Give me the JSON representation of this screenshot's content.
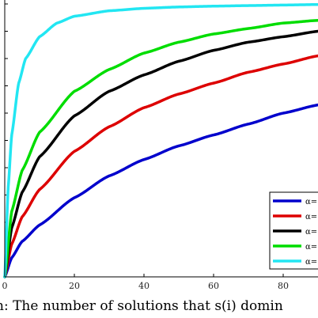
{
  "chart_data": {
    "type": "line",
    "xlim": [
      0,
      90
    ],
    "ylim": [
      0,
      1
    ],
    "x_ticks": [
      "0",
      "20",
      "40",
      "60",
      "80"
    ],
    "grid": false,
    "legend_position": "bottom-right",
    "series": [
      {
        "name": "α=",
        "color": "#0000cc",
        "x": [
          0,
          2,
          5,
          10,
          20,
          30,
          40,
          50,
          60,
          70,
          80,
          90
        ],
        "y": [
          0,
          0.07,
          0.13,
          0.19,
          0.29,
          0.37,
          0.43,
          0.48,
          0.52,
          0.56,
          0.6,
          0.63
        ]
      },
      {
        "name": "α=",
        "color": "#dd0000",
        "x": [
          0,
          2,
          5,
          10,
          20,
          30,
          40,
          50,
          60,
          70,
          80,
          90
        ],
        "y": [
          0,
          0.12,
          0.22,
          0.32,
          0.46,
          0.55,
          0.62,
          0.67,
          0.71,
          0.75,
          0.78,
          0.81
        ]
      },
      {
        "name": "α=",
        "color": "#000000",
        "x": [
          0,
          2,
          5,
          10,
          20,
          30,
          40,
          50,
          60,
          70,
          80,
          90
        ],
        "y": [
          0,
          0.18,
          0.31,
          0.44,
          0.59,
          0.68,
          0.74,
          0.79,
          0.83,
          0.86,
          0.88,
          0.9
        ]
      },
      {
        "name": "α=",
        "color": "#00dd00",
        "x": [
          0,
          2,
          5,
          10,
          20,
          30,
          40,
          50,
          60,
          70,
          80,
          90
        ],
        "y": [
          0,
          0.24,
          0.39,
          0.53,
          0.68,
          0.76,
          0.82,
          0.86,
          0.89,
          0.91,
          0.93,
          0.94
        ]
      },
      {
        "name": "α=",
        "color": "#22e6f2",
        "x": [
          0,
          1,
          2,
          4,
          6,
          10,
          15,
          20,
          30,
          40,
          50,
          60,
          70,
          80,
          90
        ],
        "y": [
          0,
          0.33,
          0.52,
          0.71,
          0.8,
          0.88,
          0.93,
          0.955,
          0.975,
          0.984,
          0.989,
          0.992,
          0.994,
          0.996,
          0.998
        ]
      }
    ]
  },
  "caption": "n: The number of solutions that s(i) domin"
}
